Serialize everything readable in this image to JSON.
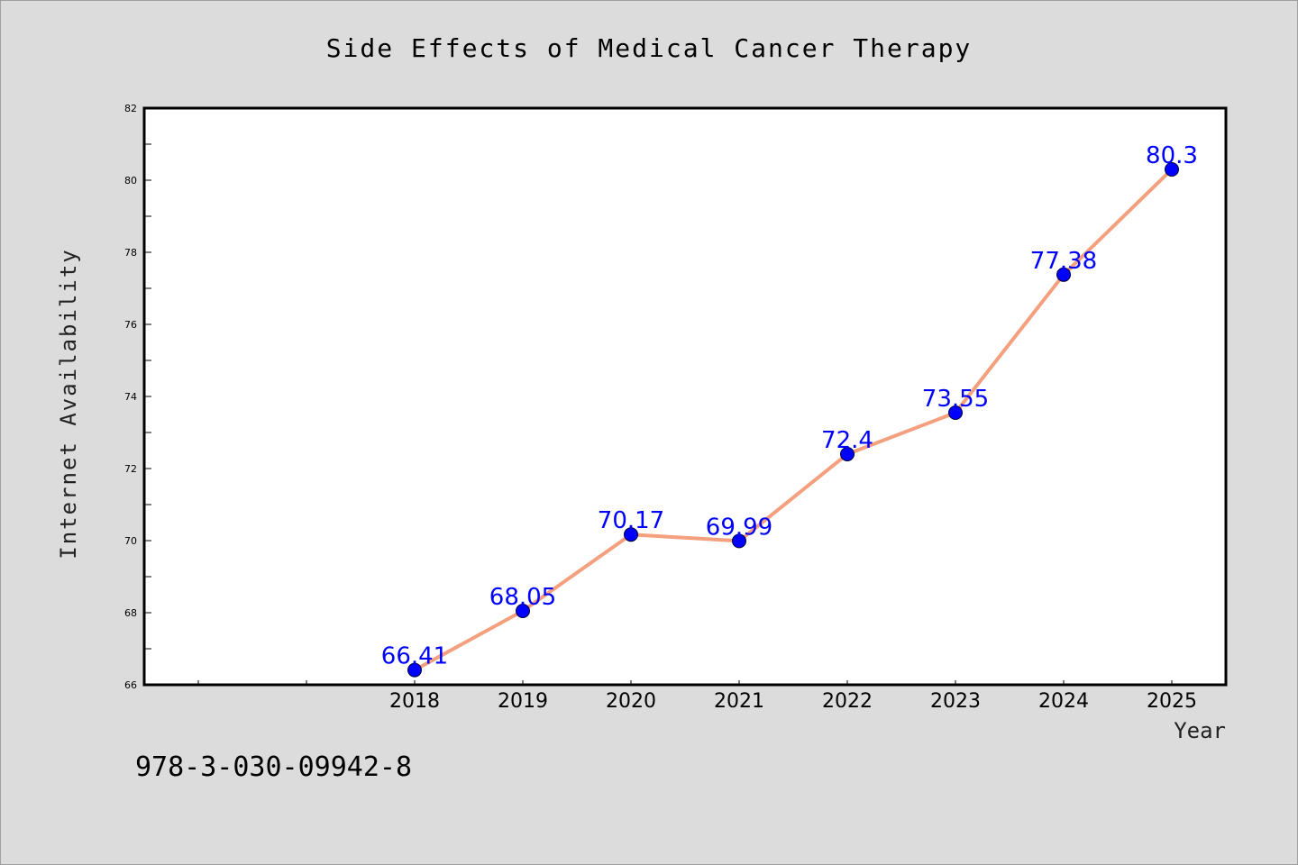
{
  "chart_data": {
    "type": "line",
    "title": "Side Effects of Medical Cancer Therapy",
    "xlabel": "Year",
    "ylabel": "Internet Availability",
    "x": [
      "2018",
      "2019",
      "2020",
      "2021",
      "2022",
      "2023",
      "2024",
      "2025"
    ],
    "series": [
      {
        "values": [
          66.41,
          68.05,
          70.17,
          69.99,
          72.4,
          73.55,
          77.38,
          80.3
        ]
      }
    ],
    "data_labels": [
      "66.41",
      "68.05",
      "70.17",
      "69.99",
      "72.4",
      "73.55",
      "77.38",
      "80.3"
    ],
    "ylim": [
      66,
      82
    ],
    "yticks": [
      66,
      68,
      70,
      72,
      74,
      76,
      78,
      80,
      82
    ],
    "grid": false,
    "legend": "none",
    "line_color": "#f4a07f",
    "marker_color": "#0000ff",
    "label_color": "#0000ff"
  },
  "footer_note": "978-3-030-09942-8"
}
